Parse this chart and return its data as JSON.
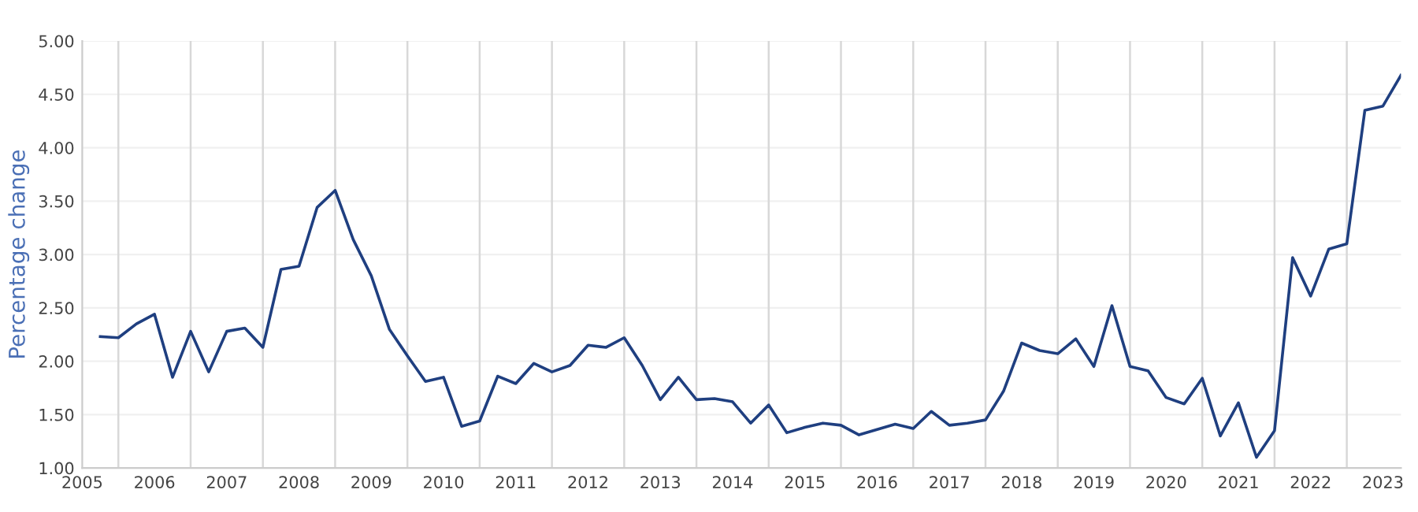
{
  "chart_data": {
    "type": "line",
    "ylabel": "Percentage change",
    "x": [
      2005.25,
      2005.5,
      2005.75,
      2006,
      2006.25,
      2006.5,
      2006.75,
      2007,
      2007.25,
      2007.5,
      2007.75,
      2008,
      2008.25,
      2008.5,
      2008.75,
      2009,
      2009.25,
      2009.5,
      2009.75,
      2010,
      2010.25,
      2010.5,
      2010.75,
      2011,
      2011.25,
      2011.5,
      2011.75,
      2012,
      2012.25,
      2012.5,
      2012.75,
      2013,
      2013.25,
      2013.5,
      2013.75,
      2014,
      2014.25,
      2014.5,
      2014.75,
      2015,
      2015.25,
      2015.5,
      2015.75,
      2016,
      2016.25,
      2016.5,
      2016.75,
      2017,
      2017.25,
      2017.5,
      2017.75,
      2018,
      2018.25,
      2018.5,
      2018.75,
      2019,
      2019.25,
      2019.5,
      2019.75,
      2020,
      2020.25,
      2020.5,
      2020.75,
      2021,
      2021.25,
      2021.5,
      2021.75,
      2022,
      2022.25,
      2022.5,
      2022.75,
      2023,
      2023.25
    ],
    "series": [
      {
        "color": "#1f3f80",
        "values": [
          2.23,
          2.22,
          2.35,
          2.44,
          1.85,
          2.28,
          1.9,
          2.28,
          2.31,
          2.13,
          2.86,
          2.89,
          3.44,
          3.6,
          3.14,
          2.8,
          2.3,
          2.05,
          1.81,
          1.85,
          1.39,
          1.44,
          1.86,
          1.79,
          1.98,
          1.9,
          1.96,
          2.15,
          2.13,
          2.22,
          1.96,
          1.64,
          1.85,
          1.64,
          1.65,
          1.62,
          1.42,
          1.59,
          1.33,
          1.38,
          1.42,
          1.4,
          1.31,
          1.36,
          1.41,
          1.37,
          1.53,
          1.4,
          1.42,
          1.45,
          1.72,
          2.17,
          2.1,
          2.07,
          2.21,
          1.95,
          2.52,
          1.95,
          1.91,
          1.66,
          1.6,
          1.84,
          1.3,
          1.61,
          1.1,
          1.35,
          2.97,
          2.61,
          3.05,
          3.1,
          4.35,
          4.39,
          4.68
        ]
      }
    ],
    "xlim": [
      2005,
      2023.25
    ],
    "xticks": [
      2005,
      {
        "value": 2005.5,
        "label": null
      },
      2006,
      {
        "value": 2006.5,
        "label": null
      },
      2007,
      {
        "value": 2007.5,
        "label": null
      },
      2008,
      {
        "value": 2008.5,
        "label": null
      },
      2009,
      {
        "value": 2009.5,
        "label": null
      },
      2010,
      {
        "value": 2010.5,
        "label": null
      },
      2011,
      {
        "value": 2011.5,
        "label": null
      },
      2012,
      {
        "value": 2012.5,
        "label": null
      },
      2013,
      {
        "value": 2013.5,
        "label": null
      },
      2014,
      {
        "value": 2014.5,
        "label": null
      },
      2015,
      {
        "value": 2015.5,
        "label": null
      },
      2016,
      {
        "value": 2016.5,
        "label": null
      },
      2017,
      {
        "value": 2017.5,
        "label": null
      },
      2018,
      {
        "value": 2018.5,
        "label": null
      },
      2019,
      {
        "value": 2019.5,
        "label": null
      },
      2020,
      {
        "value": 2020.5,
        "label": null
      },
      2021,
      {
        "value": 2021.5,
        "label": null
      },
      2022,
      {
        "value": 2022.5,
        "label": null
      },
      2023
    ],
    "ylim": [
      1,
      5
    ],
    "yticks": [
      {
        "value": 1,
        "label": "1.00"
      },
      {
        "value": 1.5,
        "label": "1.50"
      },
      {
        "value": 2,
        "label": "2.00"
      },
      {
        "value": 2.5,
        "label": "2.50"
      },
      {
        "value": 3,
        "label": "3.00"
      },
      {
        "value": 3.5,
        "label": "3.50"
      },
      {
        "value": 4,
        "label": "4.00"
      },
      {
        "value": 4.5,
        "label": "4.50"
      },
      {
        "value": 5,
        "label": "5.00"
      }
    ],
    "grid": true,
    "marker": "none",
    "line_style": "solid"
  }
}
